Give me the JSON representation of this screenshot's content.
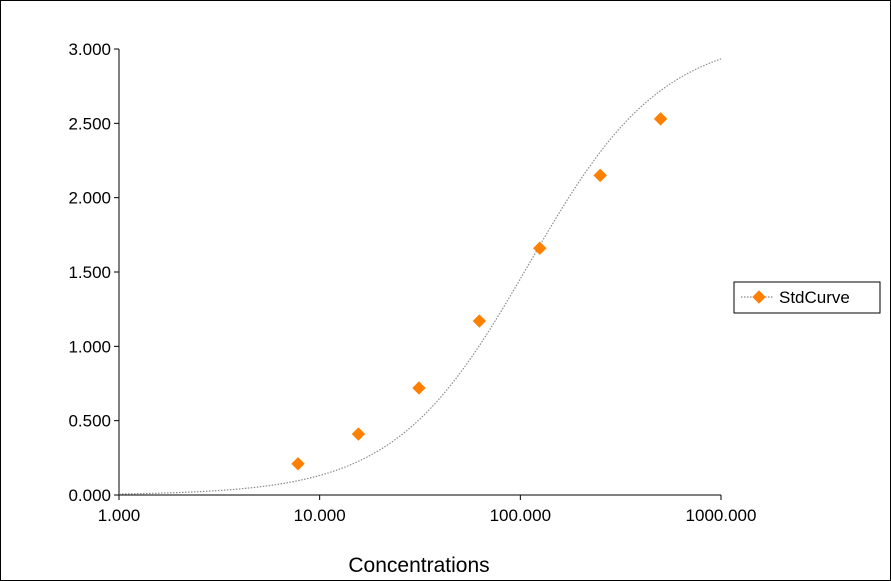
{
  "chart_data": {
    "type": "scatter",
    "title": "",
    "xlabel": "Concentrations",
    "ylabel": "",
    "x_scale": "log",
    "xlim": [
      1,
      1000
    ],
    "ylim": [
      0,
      3
    ],
    "x_ticks": [
      1,
      10,
      100,
      1000
    ],
    "x_tick_labels": [
      "1.000",
      "10.000",
      "100.000",
      "1000.000"
    ],
    "y_ticks": [
      0,
      0.5,
      1,
      1.5,
      2,
      2.5,
      3
    ],
    "y_tick_labels": [
      "0.000",
      "0.500",
      "1.000",
      "1.500",
      "2.000",
      "2.500",
      "3.000"
    ],
    "grid": false,
    "legend_position": "right",
    "series": [
      {
        "name": "StdCurve",
        "marker": "diamond",
        "color": "#ff8000",
        "line_color": "#8c8c8c",
        "line_style": "dotted",
        "x": [
          7.8,
          15.6,
          31.25,
          62.5,
          125,
          250,
          500
        ],
        "y": [
          0.21,
          0.41,
          0.72,
          1.17,
          1.66,
          2.15,
          2.53
        ]
      }
    ],
    "fit_curve": {
      "model": "4PL",
      "A": 0.0,
      "B": 1.3,
      "C": 110,
      "D": 3.1
    }
  }
}
